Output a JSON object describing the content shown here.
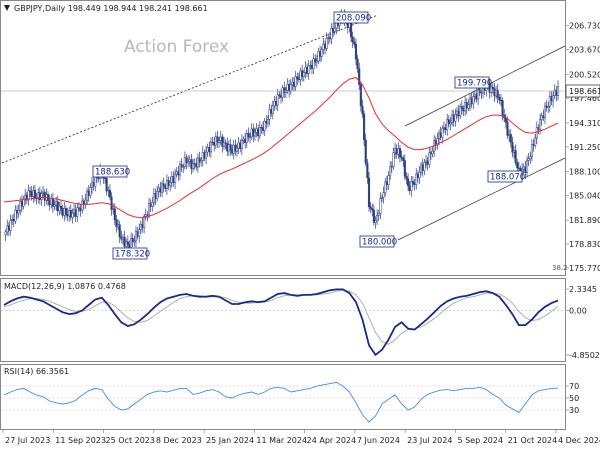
{
  "header": {
    "symbol_line": "GBPJPY,Daily  198.449 198.944 198.241 198.661",
    "watermark": "Action Forex"
  },
  "chart_data": [
    {
      "type": "candlestick",
      "title": "GBPJPY,Daily",
      "ohlc": {
        "open": 198.449,
        "high": 198.944,
        "low": 198.241,
        "close": 198.661
      },
      "current_price_label": "198.661",
      "ylim": [
        175.77,
        209.5
      ],
      "y_ticks": [
        "206.730",
        "203.670",
        "200.520",
        "197.460",
        "194.310",
        "191.250",
        "188.100",
        "185.040",
        "181.890",
        "178.830",
        "175.770"
      ],
      "x_ticks": [
        "27 Jul 2023",
        "11 Sep 2023",
        "25 Oct 2023",
        "8 Dec 2023",
        "25 Jan 2024",
        "11 Mar 2024",
        "24 Apr 2024",
        "7 Jun 2024",
        "23 Jul 2024",
        "5 Sep 2024",
        "21 Oct 2024",
        "4 Dec 2024"
      ],
      "series": [
        {
          "name": "",
          "color": "#1a2a8a",
          "values": [
            180.0,
            181.5,
            183.0,
            184.5,
            185.5,
            184.8,
            185.2,
            184.2,
            183.8,
            183.0,
            182.6,
            182.9,
            183.8,
            185.5,
            187.2,
            188.0,
            185.5,
            182.0,
            179.5,
            178.6,
            179.5,
            181.0,
            183.0,
            184.8,
            186.0,
            186.4,
            187.2,
            188.5,
            189.6,
            188.8,
            189.5,
            190.5,
            191.8,
            192.2,
            191.4,
            190.8,
            191.3,
            192.3,
            193.0,
            193.2,
            194.0,
            196.0,
            197.5,
            198.5,
            199.0,
            200.0,
            200.8,
            201.5,
            202.5,
            204.0,
            205.5,
            207.0,
            208.0,
            206.5,
            203.0,
            195.0,
            184.0,
            181.5,
            185.0,
            187.5,
            191.0,
            190.0,
            186.0,
            186.8,
            188.5,
            189.5,
            191.5,
            193.0,
            194.2,
            195.0,
            196.0,
            196.5,
            197.5,
            198.3,
            199.0,
            198.5,
            197.5,
            194.0,
            191.0,
            188.0,
            188.5,
            191.0,
            194.0,
            196.0,
            197.5,
            198.66
          ]
        },
        {
          "name": "",
          "color": "#e03030",
          "values": [
            184.2,
            184.3,
            184.4,
            184.5,
            184.6,
            184.7,
            184.8,
            184.7,
            184.6,
            184.4,
            184.2,
            184.0,
            183.9,
            183.9,
            184.0,
            184.1,
            184.0,
            183.6,
            183.1,
            182.6,
            182.3,
            182.2,
            182.3,
            182.6,
            183.0,
            183.4,
            183.9,
            184.4,
            185.0,
            185.5,
            186.0,
            186.6,
            187.2,
            187.7,
            188.1,
            188.4,
            188.8,
            189.2,
            189.6,
            190.0,
            190.5,
            191.1,
            191.8,
            192.5,
            193.2,
            193.9,
            194.6,
            195.3,
            196.0,
            196.8,
            197.6,
            198.5,
            199.3,
            199.9,
            200.1,
            199.2,
            197.5,
            195.5,
            194.2,
            193.3,
            192.6,
            191.8,
            191.2,
            190.9,
            190.9,
            191.1,
            191.4,
            191.8,
            192.2,
            192.7,
            193.2,
            193.7,
            194.2,
            194.7,
            195.1,
            195.3,
            195.3,
            195.0,
            194.3,
            193.6,
            193.1,
            193.0,
            193.2,
            193.5,
            193.9,
            194.3
          ]
        }
      ],
      "annotations": [
        "208.090",
        "199.790",
        "188.630",
        "188.070",
        "178.320",
        "180.000",
        "38.2"
      ]
    },
    {
      "type": "line",
      "title": "MACD(12,26,9) 1.0876 0.4768",
      "y_ticks": [
        "2.3345",
        "0.00",
        "-4.8502"
      ],
      "ylim": [
        -5.2,
        3.0
      ],
      "series": [
        {
          "name": "",
          "color": "#1a2a8a",
          "values": [
            0.6,
            1.0,
            1.3,
            1.5,
            1.4,
            1.2,
            1.0,
            0.6,
            0.2,
            -0.2,
            -0.4,
            -0.3,
            0.0,
            0.6,
            1.2,
            1.4,
            0.6,
            -0.4,
            -1.3,
            -1.7,
            -1.5,
            -1.0,
            -0.4,
            0.3,
            0.9,
            1.3,
            1.5,
            1.7,
            1.8,
            1.6,
            1.5,
            1.5,
            1.6,
            1.5,
            1.1,
            0.7,
            0.7,
            0.9,
            1.0,
            0.9,
            1.0,
            1.4,
            1.8,
            1.9,
            1.7,
            1.6,
            1.7,
            1.7,
            1.8,
            2.0,
            2.2,
            2.3,
            2.3,
            1.9,
            0.9,
            -1.0,
            -3.8,
            -4.85,
            -4.3,
            -3.2,
            -1.8,
            -1.3,
            -2.0,
            -2.1,
            -1.5,
            -0.9,
            -0.2,
            0.5,
            1.0,
            1.3,
            1.5,
            1.6,
            1.8,
            2.0,
            2.1,
            1.9,
            1.5,
            0.6,
            -0.4,
            -1.6,
            -1.6,
            -1.0,
            -0.2,
            0.4,
            0.8,
            1.09
          ]
        },
        {
          "name": "",
          "color": "#b0b0b0",
          "values": [
            0.4,
            0.6,
            0.9,
            1.1,
            1.3,
            1.3,
            1.2,
            1.0,
            0.7,
            0.4,
            0.1,
            -0.1,
            -0.1,
            0.1,
            0.5,
            0.9,
            0.9,
            0.5,
            -0.2,
            -0.8,
            -1.2,
            -1.3,
            -1.1,
            -0.6,
            -0.1,
            0.4,
            0.9,
            1.3,
            1.5,
            1.6,
            1.6,
            1.5,
            1.5,
            1.5,
            1.4,
            1.1,
            0.9,
            0.8,
            0.8,
            0.9,
            0.9,
            1.1,
            1.4,
            1.6,
            1.7,
            1.7,
            1.7,
            1.7,
            1.7,
            1.8,
            1.9,
            2.1,
            2.2,
            2.1,
            1.7,
            0.8,
            -0.8,
            -2.4,
            -3.4,
            -3.7,
            -3.2,
            -2.5,
            -2.1,
            -2.0,
            -1.8,
            -1.4,
            -0.9,
            -0.3,
            0.3,
            0.8,
            1.1,
            1.4,
            1.5,
            1.7,
            1.9,
            1.9,
            1.8,
            1.4,
            0.8,
            -0.1,
            -0.8,
            -1.1,
            -1.0,
            -0.6,
            -0.1,
            0.48
          ]
        }
      ]
    },
    {
      "type": "line",
      "title": "RSI(14) 66.3561",
      "y_ticks": [
        "70",
        "50",
        "30"
      ],
      "ylim": [
        0,
        100
      ],
      "series": [
        {
          "name": "",
          "color": "#3a8ee6",
          "values": [
            55,
            60,
            64,
            66,
            60,
            55,
            52,
            45,
            42,
            40,
            42,
            46,
            55,
            62,
            66,
            64,
            48,
            36,
            30,
            32,
            40,
            48,
            56,
            60,
            62,
            60,
            63,
            66,
            66,
            56,
            58,
            62,
            64,
            60,
            52,
            50,
            55,
            58,
            60,
            56,
            60,
            66,
            68,
            66,
            60,
            62,
            64,
            66,
            70,
            72,
            74,
            76,
            70,
            60,
            42,
            22,
            10,
            20,
            40,
            48,
            55,
            40,
            30,
            35,
            48,
            56,
            60,
            63,
            64,
            62,
            64,
            66,
            66,
            68,
            64,
            56,
            50,
            38,
            32,
            26,
            40,
            55,
            62,
            64,
            66,
            66.36
          ]
        }
      ]
    }
  ]
}
